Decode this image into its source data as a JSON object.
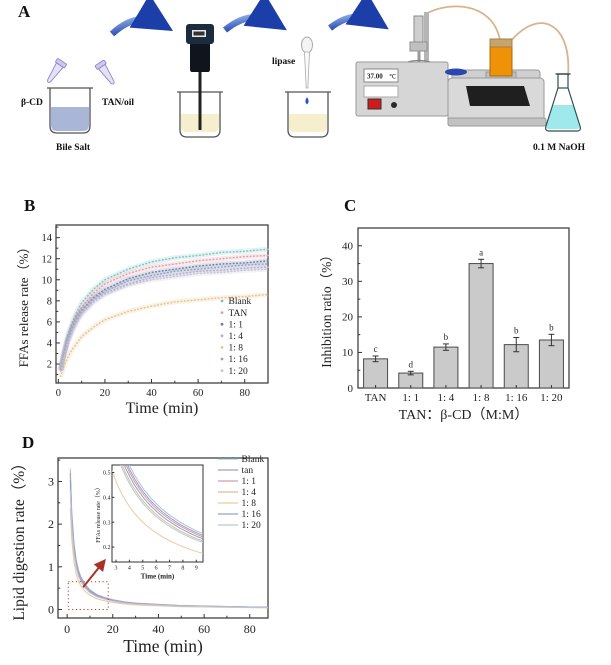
{
  "figure": {
    "background": "#ffffff",
    "arrow_color_dark": "#1c3ea8",
    "arrow_color_light": "#8fb0e8",
    "annotation_red": "#b03a2e"
  },
  "panel_a": {
    "label": "A",
    "beta_cd_label": "β-CD",
    "tan_oil_label": "TAN/oil",
    "bile_salt_label": "Bile Salt",
    "lipase_label": "lipase",
    "temp_value": "37.00",
    "temp_unit": "℃",
    "naoh_label": "0.1 M NaOH"
  },
  "panel_b": {
    "label": "B"
  },
  "panel_c": {
    "label": "C"
  },
  "panel_d": {
    "label": "D"
  },
  "chart_data": [
    {
      "panel": "B",
      "type": "line",
      "xlabel": "Time (min)",
      "ylabel": "FFAs release rate（%）",
      "xlim": [
        -1,
        90
      ],
      "ylim": [
        0.2,
        15.2
      ],
      "xticks": [
        0,
        20,
        40,
        60,
        80
      ],
      "yticks": [
        2,
        4,
        6,
        8,
        10,
        12,
        14
      ],
      "legend_position": "lower right",
      "x": [
        1,
        2,
        4,
        6,
        8,
        10,
        15,
        20,
        30,
        40,
        50,
        60,
        70,
        80,
        90
      ],
      "series": [
        {
          "name": "Blank",
          "color": "#7fc4c4",
          "y": [
            1.6,
            2.8,
            4.7,
            6.0,
            7.0,
            7.8,
            9.1,
            10.0,
            11.0,
            11.7,
            12.1,
            12.3,
            12.6,
            12.7,
            12.9
          ]
        },
        {
          "name": "TAN",
          "color": "#e49ca6",
          "y": [
            1.5,
            2.7,
            4.5,
            5.7,
            6.7,
            7.4,
            8.7,
            9.6,
            10.6,
            11.2,
            11.5,
            11.8,
            12.0,
            12.2,
            12.3
          ]
        },
        {
          "name": "1: 1",
          "color": "#6d7fa8",
          "y": [
            1.4,
            2.6,
            4.3,
            5.5,
            6.4,
            7.1,
            8.3,
            9.1,
            10.1,
            10.7,
            11.0,
            11.3,
            11.5,
            11.6,
            11.8
          ]
        },
        {
          "name": "1: 4",
          "color": "#b6a8cf",
          "y": [
            1.4,
            2.4,
            4.1,
            5.2,
            6.1,
            6.8,
            8.0,
            8.7,
            9.6,
            10.2,
            10.5,
            10.8,
            10.9,
            11.1,
            11.2
          ]
        },
        {
          "name": "1: 8",
          "color": "#e9c38c",
          "y": [
            0.8,
            1.5,
            2.6,
            3.4,
            4.0,
            4.6,
            5.5,
            6.2,
            7.0,
            7.5,
            7.9,
            8.1,
            8.3,
            8.4,
            8.6
          ]
        },
        {
          "name": "1: 16",
          "color": "#96a3c0",
          "y": [
            1.4,
            2.5,
            4.2,
            5.4,
            6.3,
            7.0,
            8.2,
            8.9,
            9.9,
            10.4,
            10.8,
            11.0,
            11.2,
            11.4,
            11.5
          ]
        },
        {
          "name": "1: 20",
          "color": "#c6c3d6",
          "y": [
            1.3,
            2.4,
            4.0,
            5.1,
            6.0,
            6.7,
            7.8,
            8.6,
            9.5,
            10.0,
            10.3,
            10.6,
            10.7,
            10.9,
            11.0
          ]
        }
      ]
    },
    {
      "panel": "C",
      "type": "bar",
      "xlabel": "TAN：β-CD（M:M）",
      "ylabel": "Inhibition ratio（%）",
      "ylim": [
        0,
        45
      ],
      "yticks": [
        0,
        10,
        20,
        30,
        40
      ],
      "categories": [
        "TAN",
        "1: 1",
        "1: 4",
        "1: 8",
        "1: 16",
        "1: 20"
      ],
      "values": [
        8.2,
        4.2,
        11.5,
        35.0,
        12.2,
        13.5
      ],
      "errors": [
        0.8,
        0.5,
        0.9,
        1.2,
        2.0,
        1.6
      ],
      "sig_letters": [
        "c",
        "d",
        "b",
        "a",
        "b",
        "b"
      ],
      "bar_color": "#cacaca",
      "bar_edge_color": "#4a4a4a"
    },
    {
      "panel": "D",
      "type": "line",
      "xlabel": "Time (min)",
      "ylabel": "Lipid digestion rate（%）",
      "xlim": [
        -4,
        88
      ],
      "ylim": [
        -0.2,
        3.55
      ],
      "xticks": [
        0,
        20,
        40,
        60,
        80
      ],
      "yticks": [
        0,
        1,
        2,
        3
      ],
      "x": [
        1.4,
        2,
        3,
        4,
        5,
        6,
        8,
        10,
        13,
        16,
        20,
        25,
        30,
        40,
        50,
        60,
        70,
        80,
        90
      ],
      "base_y": [
        3.3,
        2.3,
        1.55,
        1.15,
        0.92,
        0.77,
        0.58,
        0.46,
        0.35,
        0.29,
        0.23,
        0.18,
        0.15,
        0.12,
        0.09,
        0.08,
        0.07,
        0.06,
        0.05
      ],
      "series": [
        {
          "name": "Blank",
          "color": "#a9c6dc",
          "scale": 1.0,
          "inset_coef": 1.72
        },
        {
          "name": "tan",
          "color": "#a89bc0",
          "scale": 0.97,
          "inset_coef": 1.67
        },
        {
          "name": "1: 1",
          "color": "#d79ca8",
          "scale": 0.95,
          "inset_coef": 1.63
        },
        {
          "name": "1: 4",
          "color": "#cfc196",
          "scale": 0.88,
          "inset_coef": 1.52
        },
        {
          "name": "1: 8",
          "color": "#eccaa0",
          "scale": 0.72,
          "inset_coef": 1.18
        },
        {
          "name": "1: 16",
          "color": "#8fa3c6",
          "scale": 0.92,
          "inset_coef": 1.58
        },
        {
          "name": "1: 20",
          "color": "#bcc6d8",
          "scale": 0.85,
          "inset_coef": 1.48
        }
      ],
      "zoom_box": {
        "t0": 0.5,
        "t1": 18,
        "v0": 0,
        "v1": 0.65
      },
      "inset": {
        "xlabel": "Time (min)",
        "ylabel": "FFAs release rate（%）",
        "xlim": [
          2.7,
          9.5
        ],
        "ylim": [
          0.14,
          0.53
        ],
        "xticks": [
          3,
          4,
          5,
          6,
          7,
          8,
          9
        ],
        "yticks": [
          0.2,
          0.3,
          0.4,
          0.5
        ]
      }
    }
  ]
}
